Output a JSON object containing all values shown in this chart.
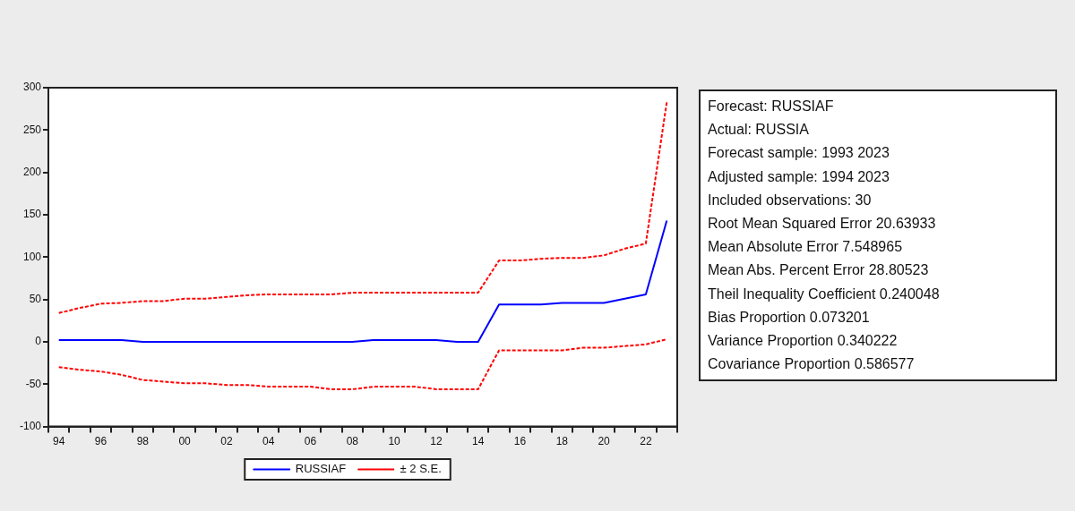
{
  "chart_data": {
    "type": "line",
    "categories": [
      "94",
      null,
      "96",
      null,
      "98",
      null,
      "00",
      null,
      "02",
      null,
      "04",
      null,
      "06",
      null,
      "08",
      null,
      "10",
      null,
      "12",
      null,
      "14",
      null,
      "16",
      null,
      "18",
      null,
      "20",
      null,
      "22",
      null
    ],
    "series": [
      {
        "name": "RUSSIAF",
        "color": "#0000ff",
        "line_style": "solid",
        "values": [
          2,
          2,
          2,
          2,
          0,
          0,
          0,
          0,
          0,
          0,
          0,
          0,
          0,
          0,
          0,
          2,
          2,
          2,
          2,
          0,
          0,
          44,
          44,
          44,
          46,
          46,
          46,
          51,
          56,
          143
        ]
      },
      {
        "name": "± 2 S.E.",
        "color": "#ff0000",
        "line_style": "dashed",
        "values": [
          34,
          40,
          45,
          46,
          48,
          48,
          51,
          51,
          53,
          55,
          56,
          56,
          56,
          56,
          58,
          58,
          58,
          58,
          58,
          58,
          58,
          96,
          96,
          98,
          99,
          99,
          102,
          110,
          116,
          283
        ]
      },
      {
        "color": "#ff0000",
        "line_style": "dashed",
        "values": [
          -30,
          -33,
          -35,
          -39,
          -45,
          -47,
          -49,
          -49,
          -51,
          -51,
          -53,
          -53,
          -53,
          -56,
          -56,
          -53,
          -53,
          -53,
          -56,
          -56,
          -56,
          -10,
          -10,
          -10,
          -10,
          -7,
          -7,
          -5,
          -3,
          3
        ]
      }
    ],
    "ylim": [
      -100,
      300
    ],
    "yticks": [
      -100,
      -50,
      0,
      50,
      100,
      150,
      200,
      250,
      300
    ],
    "grid": false,
    "legend": "bottom",
    "marker": "none",
    "annotations": [
      "Forecast: RUSSIAF",
      "Actual: RUSSIA",
      "Forecast sample: 1993 2023",
      "Adjusted sample: 1994 2023",
      "Included observations: 30",
      "Root Mean Squared Error 20.63933",
      "Mean Absolute Error 7.548965",
      "Mean Abs. Percent Error 28.80523",
      "Theil Inequality Coefficient 0.240048",
      "Bias Proportion 0.073201",
      "Variance Proportion 0.340222",
      "Covariance Proportion 0.586577"
    ]
  }
}
